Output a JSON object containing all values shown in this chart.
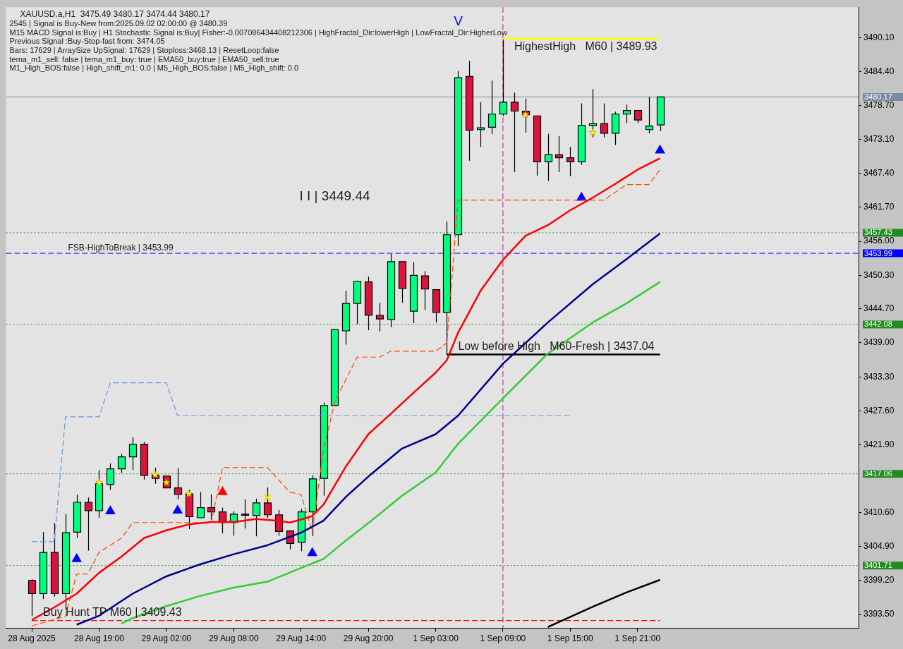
{
  "chart_data": {
    "type": "candlestick",
    "title": "XAUUSD.a,H1  3475.49 3480.17 3474.44 3480.17",
    "annotations": [
      "2545 | Signal is Buy-New from:2025.09.02 02:00:00 @ 3480.39",
      "M15 MACD Signal is:Buy | H1 Stochastic Signal is:Buy| Fisher:-0.007086434408212306 | HighFractal_Dir:lowerHigh | LowFractal_Dir:HigherLow",
      "Previous Signal :Buy-Stop-fast from: 3474.05",
      "Bars: 17629 | ArraySize UpSignal: 17629 | Stoploss:3468.13 | ResetLoop:false",
      "tema_m1_sell: false | tema_m1_buy: true | EMA50_buy:true | EMA50_sell:true",
      "M1_High_BOS:false | High_shift_m1: 0.0 | M5_High_BOS:false | M5_High_shift: 0.0",
      "I I | 3449.44",
      "V",
      {
        "text": "FSB-HighToBreak | 3453.99",
        "y": 3453.99
      }
    ],
    "categories": [
      "28 Aug 2025",
      null,
      null,
      null,
      null,
      null,
      "28 Aug 19:00",
      null,
      null,
      null,
      null,
      null,
      "29 Aug 02:00",
      null,
      null,
      null,
      null,
      null,
      "29 Aug 08:00",
      null,
      null,
      null,
      null,
      null,
      "29 Aug 14:00",
      null,
      null,
      null,
      null,
      null,
      "29 Aug 20:00",
      null,
      null,
      null,
      null,
      null,
      "1 Sep 03:00",
      null,
      null,
      null,
      null,
      null,
      "1 Sep 09:00",
      null,
      null,
      null,
      null,
      null,
      "1 Sep 15:00",
      null,
      null,
      null,
      null,
      null,
      "1 Sep 21:00",
      null,
      null
    ],
    "ohlc": [
      [
        3399.2,
        3399.4,
        3393.2,
        3397.0
      ],
      [
        3397.0,
        3407.3,
        3396.1,
        3403.9
      ],
      [
        3403.9,
        3408.8,
        3396.5,
        3397.0
      ],
      [
        3397.0,
        3410.3,
        3394.3,
        3407.2
      ],
      [
        3407.3,
        3413.6,
        3406.3,
        3412.3
      ],
      [
        3412.3,
        3413.1,
        3404.2,
        3410.9
      ],
      [
        3410.9,
        3417.7,
        3409.7,
        3415.4
      ],
      [
        3415.3,
        3418.8,
        3414.4,
        3417.9
      ],
      [
        3417.9,
        3420.4,
        3417.2,
        3419.9
      ],
      [
        3419.9,
        3423.2,
        3417.7,
        3422.0
      ],
      [
        3422.0,
        3422.4,
        3416.1,
        3416.8
      ],
      [
        3416.8,
        3418.1,
        3415.4,
        3416.3
      ],
      [
        3416.7,
        3416.7,
        3414.7,
        3414.7
      ],
      [
        3414.7,
        3418.0,
        3412.8,
        3413.6
      ],
      [
        3413.7,
        3414.4,
        3407.8,
        3409.9
      ],
      [
        3409.7,
        3414.0,
        3409.6,
        3411.4
      ],
      [
        3411.4,
        3413.6,
        3409.4,
        3410.7
      ],
      [
        3410.7,
        3411.4,
        3407.1,
        3408.9
      ],
      [
        3408.9,
        3410.8,
        3406.7,
        3410.3
      ],
      [
        3410.3,
        3412.8,
        3407.9,
        3410.2
      ],
      [
        3410.1,
        3412.9,
        3406.6,
        3412.2
      ],
      [
        3412.2,
        3414.8,
        3409.7,
        3410.2
      ],
      [
        3410.2,
        3411.0,
        3406.7,
        3407.4
      ],
      [
        3407.5,
        3407.5,
        3404.4,
        3405.4
      ],
      [
        3405.6,
        3411.2,
        3404.1,
        3410.7
      ],
      [
        3410.7,
        3416.8,
        3406.6,
        3416.2
      ],
      [
        3416.3,
        3429.0,
        3413.4,
        3428.5
      ],
      [
        3428.5,
        3441.2,
        3428.5,
        3441.2
      ],
      [
        3441.0,
        3447.7,
        3438.7,
        3445.6
      ],
      [
        3445.6,
        3449.4,
        3442.1,
        3449.3
      ],
      [
        3449.2,
        3450.1,
        3441.1,
        3443.6
      ],
      [
        3443.6,
        3445.7,
        3440.9,
        3443.0
      ],
      [
        3442.9,
        3453.9,
        3441.6,
        3452.6
      ],
      [
        3452.6,
        3452.6,
        3445.7,
        3448.1
      ],
      [
        3444.3,
        3452.5,
        3442.3,
        3450.3
      ],
      [
        3450.2,
        3451.0,
        3444.5,
        3448.0
      ],
      [
        3447.9,
        3447.9,
        3442.4,
        3444.1
      ],
      [
        3444.1,
        3459.3,
        3437.0,
        3457.1
      ],
      [
        3457.1,
        3484.5,
        3455.2,
        3483.4
      ],
      [
        3483.6,
        3486.2,
        3469.5,
        3474.6
      ],
      [
        3474.7,
        3479.3,
        3471.8,
        3475.0
      ],
      [
        3475.1,
        3482.9,
        3474.0,
        3477.3
      ],
      [
        3477.3,
        3489.9,
        3477.0,
        3479.3
      ],
      [
        3479.3,
        3480.9,
        3467.6,
        3477.8
      ],
      [
        3477.8,
        3479.9,
        3474.2,
        3477.2
      ],
      [
        3477.0,
        3477.0,
        3467.0,
        3469.3
      ],
      [
        3469.3,
        3474.0,
        3466.1,
        3470.5
      ],
      [
        3470.5,
        3473.6,
        3467.6,
        3470.0
      ],
      [
        3470.0,
        3471.8,
        3466.9,
        3469.3
      ],
      [
        3469.3,
        3479.1,
        3468.8,
        3475.4
      ],
      [
        3475.4,
        3481.5,
        3473.4,
        3475.7
      ],
      [
        3475.7,
        3479.1,
        3473.4,
        3474.1
      ],
      [
        3474.1,
        3477.7,
        3472.1,
        3477.3
      ],
      [
        3477.3,
        3478.9,
        3475.8,
        3477.9
      ],
      [
        3477.9,
        3478.0,
        3475.8,
        3476.3
      ],
      [
        3474.7,
        3480.2,
        3474.1,
        3475.3
      ],
      [
        3475.49,
        3480.17,
        3474.44,
        3480.17
      ]
    ],
    "colors": [
      "#dc143c",
      "#00ff7f",
      "#dc143c",
      "#00ff7f",
      "#00ff7f",
      "#dc143c",
      "#00ff7f",
      "#00ff7f",
      "#00ff7f",
      "#00ff7f",
      "#dc143c",
      "#dc143c",
      "#dc143c",
      "#dc143c",
      "#dc143c",
      "#00ff7f",
      "#dc143c",
      "#dc143c",
      "#00ff7f",
      "#dc143c",
      "#00ff7f",
      "#dc143c",
      "#dc143c",
      "#dc143c",
      "#00ff7f",
      "#00ff7f",
      "#00ff7f",
      "#00ff7f",
      "#00ff7f",
      "#00ff7f",
      "#dc143c",
      "#dc143c",
      "#00ff7f",
      "#dc143c",
      "#00ff7f",
      "#dc143c",
      "#dc143c",
      "#00ff7f",
      "#00ff7f",
      "#dc143c",
      "#00ff7f",
      "#00ff7f",
      "#00ff7f",
      "#dc143c",
      "#dc143c",
      "#dc143c",
      "#00ff7f",
      "#dc143c",
      "#dc143c",
      "#00ff7f",
      "#00ff7f",
      "#dc143c",
      "#00ff7f",
      "#00ff7f",
      "#dc143c",
      "#00ff7f",
      "#00ff7f"
    ],
    "series": [
      {
        "type": "line",
        "color": "#ff0000",
        "line_style": "solid",
        "values": [
          3392.6,
          null,
          3394.7,
          null,
          3397.0,
          null,
          3400.5,
          null,
          3403.2,
          null,
          3406.3,
          null,
          3407.6,
          null,
          3408.6,
          null,
          3409.0,
          null,
          3409.0,
          null,
          3409.5,
          null,
          3409.2,
          3408.9,
          3409.4,
          3410.0,
          3411.9,
          null,
          3418.3,
          null,
          3423.7,
          null,
          3427.1,
          null,
          3430.6,
          null,
          3434.0,
          3436.1,
          3440.7,
          null,
          3447.7,
          null,
          3452.9,
          null,
          3456.9,
          null,
          3458.7,
          null,
          3461.2,
          null,
          3463.3,
          null,
          3465.6,
          null,
          3468.0,
          null,
          3469.9
        ]
      },
      {
        "type": "line",
        "color": "#00008b",
        "line_style": "solid",
        "values": [
          null,
          null,
          null,
          null,
          3391.8,
          null,
          3393.3,
          null,
          null,
          3397.0,
          null,
          null,
          3399.9,
          null,
          null,
          3401.9,
          null,
          null,
          3403.6,
          null,
          null,
          3405.1,
          null,
          null,
          3407.2,
          null,
          3409.2,
          null,
          3413.2,
          null,
          3416.6,
          null,
          null,
          3421.3,
          null,
          null,
          3423.7,
          null,
          3426.8,
          null,
          null,
          null,
          3435.5,
          null,
          null,
          null,
          3442.4,
          null,
          null,
          null,
          3448.8,
          null,
          null,
          3453.0,
          null,
          null,
          3457.3
        ]
      },
      {
        "type": "line",
        "color": "#32cd32",
        "line_style": "solid",
        "values": [
          null,
          null,
          null,
          null,
          null,
          null,
          null,
          null,
          3392.0,
          3392.9,
          null,
          null,
          3394.9,
          null,
          null,
          3396.6,
          null,
          null,
          3398.0,
          null,
          null,
          3399.0,
          null,
          null,
          3401.3,
          null,
          3402.8,
          null,
          3405.9,
          null,
          3408.8,
          null,
          null,
          3413.4,
          null,
          null,
          3417.3,
          null,
          3422.1,
          null,
          null,
          null,
          3429.7,
          null,
          null,
          null,
          3437.2,
          null,
          null,
          null,
          3442.4,
          null,
          null,
          3445.6,
          null,
          null,
          3449.2
        ]
      },
      {
        "type": "line",
        "color": "#000000",
        "line_style": "solid",
        "values": [
          null,
          null,
          null,
          null,
          null,
          null,
          null,
          null,
          null,
          null,
          null,
          null,
          null,
          null,
          null,
          null,
          null,
          null,
          null,
          null,
          null,
          null,
          null,
          null,
          null,
          null,
          null,
          null,
          null,
          null,
          null,
          null,
          null,
          null,
          null,
          null,
          null,
          null,
          null,
          null,
          null,
          null,
          null,
          null,
          null,
          null,
          3391.4,
          null,
          null,
          null,
          3394.8,
          null,
          null,
          3397.2,
          null,
          null,
          3399.3
        ]
      },
      {
        "type": "line",
        "color": "#ff4500",
        "line_style": "dashed",
        "values": [
          3391.6,
          null,
          null,
          3393.2,
          3400.3,
          3400.3,
          3403.9,
          null,
          3406.3,
          3408.9,
          null,
          null,
          null,
          null,
          null,
          null,
          3408.9,
          3418.1,
          null,
          null,
          null,
          3418.1,
          null,
          3414.0,
          3413.6,
          3407.4,
          3421.0,
          3429.1,
          null,
          3436.6,
          null,
          3436.6,
          3437.6,
          null,
          null,
          null,
          3437.6,
          3439.0,
          3462.9,
          null,
          null,
          null,
          null,
          null,
          null,
          null,
          null,
          null,
          null,
          null,
          null,
          3462.9,
          null,
          3465.5,
          null,
          3465.5,
          3468.0
        ]
      },
      {
        "type": "line",
        "color": "#6495ed",
        "line_style": "dashed",
        "values": [
          3405.7,
          null,
          3405.7,
          3426.6,
          null,
          null,
          3426.6,
          3432.3,
          null,
          null,
          null,
          null,
          3432.3,
          3426.8,
          null,
          null,
          null,
          null,
          null,
          null,
          null,
          null,
          null,
          null,
          null,
          null,
          null,
          null,
          null,
          null,
          null,
          null,
          null,
          null,
          null,
          null,
          null,
          null,
          null,
          null,
          null,
          null,
          null,
          null,
          null,
          null,
          null,
          null,
          3426.8,
          null,
          null,
          null,
          null,
          null,
          null,
          null,
          null
        ]
      },
      {
        "type": "line",
        "name": "Buy Hunt TP M60 | 3409.43",
        "color": "#ff0000",
        "line_style": "dashed",
        "values": [
          3392.5,
          null,
          null,
          null,
          null,
          null,
          null,
          null,
          null,
          null,
          null,
          null,
          null,
          null,
          null,
          null,
          null,
          null,
          null,
          null,
          null,
          null,
          null,
          null,
          null,
          null,
          null,
          null,
          null,
          null,
          null,
          null,
          null,
          null,
          null,
          null,
          null,
          null,
          null,
          null,
          null,
          null,
          null,
          null,
          null,
          null,
          null,
          null,
          null,
          null,
          null,
          null,
          null,
          null,
          null,
          null,
          3392.5
        ]
      },
      {
        "type": "line",
        "name": "HighestHigh   M60 | 3489.93",
        "color": "#ffff00",
        "line_style": "solid",
        "values": [
          null,
          null,
          null,
          null,
          null,
          null,
          null,
          null,
          null,
          null,
          null,
          null,
          null,
          null,
          null,
          null,
          null,
          null,
          null,
          null,
          null,
          null,
          null,
          null,
          null,
          null,
          null,
          null,
          null,
          null,
          null,
          null,
          null,
          null,
          null,
          null,
          null,
          null,
          null,
          null,
          null,
          null,
          3489.93,
          null,
          null,
          null,
          null,
          null,
          null,
          null,
          null,
          null,
          null,
          null,
          null,
          null,
          3489.93
        ]
      },
      {
        "type": "line",
        "name": "Low before High   M60-Fresh | 3437.04",
        "color": "#000000",
        "line_style": "solid",
        "values": [
          null,
          null,
          null,
          null,
          null,
          null,
          null,
          null,
          null,
          null,
          null,
          null,
          null,
          null,
          null,
          null,
          null,
          null,
          null,
          null,
          null,
          null,
          null,
          null,
          null,
          null,
          null,
          null,
          null,
          null,
          null,
          null,
          null,
          null,
          null,
          null,
          null,
          3437.04,
          null,
          null,
          null,
          null,
          null,
          null,
          null,
          null,
          null,
          null,
          null,
          null,
          null,
          null,
          null,
          null,
          null,
          null,
          3437.04
        ]
      },
      {
        "type": "scatter",
        "color": "#ffff00",
        "marker": "star",
        "values": [
          null,
          null,
          null,
          null,
          null,
          null,
          3415.6,
          null,
          null,
          null,
          null,
          3416.9,
          3415.6,
          null,
          3413.7,
          null,
          null,
          null,
          null,
          null,
          null,
          null,
          null,
          null,
          null,
          null,
          null,
          null,
          null,
          null,
          null,
          null,
          null,
          null,
          null,
          null,
          null,
          null,
          null,
          null,
          null,
          null,
          null,
          null,
          3477.2,
          null,
          null,
          null,
          null,
          null,
          3474.2,
          null,
          null,
          null,
          null,
          null,
          null
        ]
      },
      {
        "type": "scatter",
        "color": "#0000ff",
        "marker": "triangle",
        "values": [
          null,
          null,
          null,
          null,
          3402.8,
          null,
          null,
          3410.8,
          null,
          null,
          null,
          null,
          null,
          3410.9,
          null,
          null,
          null,
          null,
          null,
          null,
          null,
          null,
          null,
          null,
          null,
          3403.8,
          null,
          null,
          null,
          null,
          null,
          null,
          null,
          null,
          null,
          null,
          null,
          null,
          null,
          null,
          null,
          null,
          null,
          null,
          null,
          null,
          null,
          null,
          null,
          3463.3,
          null,
          null,
          null,
          null,
          null,
          null,
          3471.2
        ]
      },
      {
        "type": "scatter",
        "color": "#ff0000",
        "marker": "triangle",
        "values": [
          null,
          null,
          null,
          null,
          null,
          null,
          null,
          null,
          null,
          null,
          null,
          null,
          null,
          null,
          null,
          null,
          null,
          3414.0,
          null,
          null,
          null,
          null,
          null,
          null,
          null,
          null,
          null,
          null,
          null,
          null,
          null,
          null,
          null,
          null,
          null,
          null,
          null,
          null,
          null,
          null,
          null,
          null,
          null,
          null,
          null,
          null,
          null,
          null,
          null,
          null,
          null,
          null,
          null,
          null,
          null,
          null,
          null
        ]
      },
      {
        "type": "scatter",
        "color": "#ffd700",
        "marker": "cross",
        "values": [
          null,
          null,
          null,
          null,
          null,
          null,
          null,
          null,
          null,
          null,
          null,
          null,
          null,
          null,
          null,
          null,
          null,
          null,
          null,
          null,
          null,
          3413.1,
          null,
          null,
          null,
          null,
          null,
          null,
          null,
          null,
          null,
          null,
          null,
          null,
          null,
          null,
          null,
          null,
          null,
          null,
          null,
          null,
          null,
          null,
          null,
          null,
          null,
          null,
          null,
          null,
          null,
          null,
          null,
          null,
          null,
          null,
          null
        ]
      }
    ],
    "ref_lines": [
      {
        "axis": "y",
        "value": 3480.17,
        "label": "3480.17",
        "color": "#7a8aa0",
        "line_style": "solid"
      },
      {
        "axis": "y",
        "value": 3457.43,
        "label": "3457.43",
        "color": "#228b22",
        "line_style": "dotted"
      },
      {
        "axis": "y",
        "value": 3453.99,
        "label": "3453.99",
        "color": "#0000ff",
        "line_style": "dashed"
      },
      {
        "axis": "y",
        "value": 3442.08,
        "label": "3442.08",
        "color": "#228b22",
        "line_style": "dotted"
      },
      {
        "axis": "y",
        "value": 3417.06,
        "label": "3417.06",
        "color": "#228b22",
        "line_style": "dotted"
      },
      {
        "axis": "y",
        "value": 3401.71,
        "label": "3401.71",
        "color": "#228b22",
        "line_style": "dotted"
      },
      {
        "axis": "x",
        "value": "1 Sep 09:00",
        "color": "#c71585",
        "line_style": "dashed"
      }
    ],
    "ylim": [
      3391.2,
      3495.2
    ],
    "yticks": [
      {
        "value": 3393.5,
        "label": "3393.50"
      },
      {
        "value": 3399.2,
        "label": "3399.20"
      },
      {
        "value": 3404.9,
        "label": "3404.90"
      },
      {
        "value": 3410.6,
        "label": "3410.60"
      },
      {
        "value": 3421.9,
        "label": "3421.90"
      },
      {
        "value": 3427.6,
        "label": "3427.60"
      },
      {
        "value": 3433.3,
        "label": "3433.30"
      },
      {
        "value": 3439.0,
        "label": "3439.00"
      },
      {
        "value": 3444.7,
        "label": "3444.70"
      },
      {
        "value": 3450.3,
        "label": "3450.30"
      },
      {
        "value": 3456.0,
        "label": "3456.00"
      },
      {
        "value": 3461.7,
        "label": "3461.70"
      },
      {
        "value": 3467.4,
        "label": "3467.40"
      },
      {
        "value": 3473.1,
        "label": "3473.10"
      },
      {
        "value": 3478.7,
        "label": "3478.70"
      },
      {
        "value": 3484.4,
        "label": "3484.40"
      },
      {
        "value": 3490.1,
        "label": "3490.10"
      }
    ],
    "grid": false,
    "legend": false,
    "marker": "none"
  }
}
